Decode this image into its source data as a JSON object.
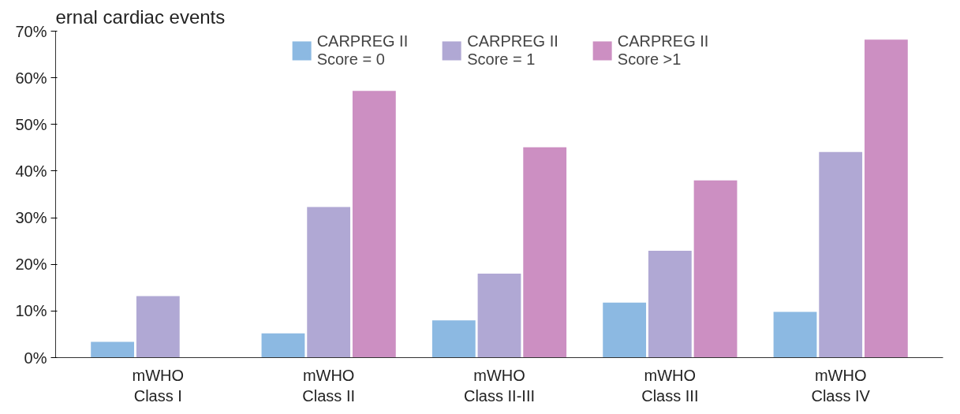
{
  "chart_data": {
    "type": "bar",
    "title": "ernal cardiac events",
    "categories": [
      "mWHO\nClass I",
      "mWHO\nClass II",
      "mWHO\nClass II-III",
      "mWHO\nClass III",
      "mWHO\nClass IV"
    ],
    "series": [
      {
        "name": "CARPREG II\nScore = 0",
        "color": "#8cb9e2",
        "values": [
          3.4,
          5.2,
          8.0,
          11.8,
          9.8
        ]
      },
      {
        "name": "CARPREG II\nScore = 1",
        "color": "#b0a8d4",
        "values": [
          13.2,
          32.3,
          18.0,
          22.9,
          44.1
        ]
      },
      {
        "name": "CARPREG II\nScore >1",
        "color": "#cc8fc2",
        "values": [
          null,
          57.2,
          45.1,
          38.0,
          68.2
        ]
      }
    ],
    "ylim": [
      0,
      70
    ],
    "yticks": [
      {
        "value": 0,
        "label": "0%"
      },
      {
        "value": 10,
        "label": "10%"
      },
      {
        "value": 20,
        "label": "20%"
      },
      {
        "value": 30,
        "label": "30%"
      },
      {
        "value": 40,
        "label": "40%"
      },
      {
        "value": 50,
        "label": "50%"
      },
      {
        "value": 60,
        "label": "60%"
      },
      {
        "value": 70,
        "label": "70%"
      }
    ],
    "grid": false,
    "legend": "top"
  }
}
